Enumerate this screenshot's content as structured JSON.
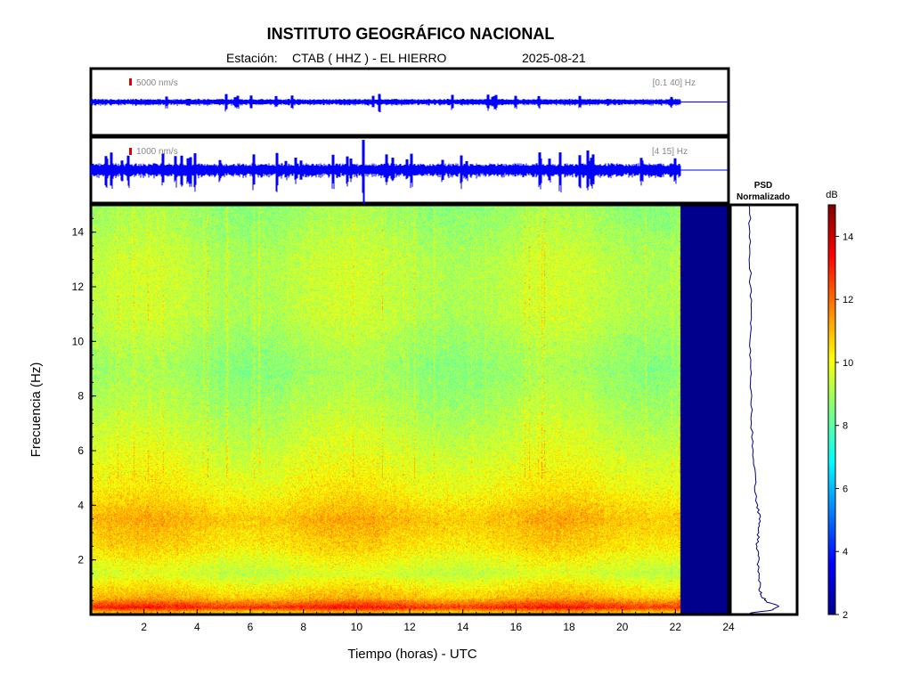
{
  "header": {
    "title": "INSTITUTO GEOGRÁFICO NACIONAL",
    "station_label": "Estación:",
    "station": "CTAB ( HHZ ) - EL HIERRO",
    "date": "2025-08-21"
  },
  "traces": [
    {
      "scale": "5000 nm/s",
      "band": "[0.1 40] Hz"
    },
    {
      "scale": "1000 nm/s",
      "band": "[4 15] Hz"
    }
  ],
  "colors": {
    "trace": "#0000ff",
    "scale_marker": "#e00000",
    "no_data": "#00008c",
    "psd_line": "#000080"
  },
  "chart_data": {
    "type": "heatmap",
    "xlabel": "Tiempo (horas) - UTC",
    "ylabel": "Frecuencia  (Hz)",
    "xlim": [
      0,
      24
    ],
    "ylim": [
      0,
      15
    ],
    "x_ticks": [
      2,
      4,
      6,
      8,
      10,
      12,
      14,
      16,
      18,
      20,
      22,
      24
    ],
    "y_ticks": [
      2,
      4,
      6,
      8,
      10,
      12,
      14
    ],
    "data_end_hour": 22.2,
    "profile_db": [
      {
        "f": 0.1,
        "db": 11
      },
      {
        "f": 0.25,
        "db": 13
      },
      {
        "f": 0.6,
        "db": 11
      },
      {
        "f": 1.5,
        "db": 9.5
      },
      {
        "f": 2.5,
        "db": 10.5
      },
      {
        "f": 3.5,
        "db": 11
      },
      {
        "f": 4.5,
        "db": 10.2
      },
      {
        "f": 6,
        "db": 9.6
      },
      {
        "f": 8,
        "db": 9.0
      },
      {
        "f": 9,
        "db": 8.8
      },
      {
        "f": 11,
        "db": 9.3
      },
      {
        "f": 13,
        "db": 9.3
      },
      {
        "f": 15,
        "db": 8.8
      }
    ],
    "psd": {
      "title": "PSD",
      "subtitle": "Normalizado",
      "points": [
        {
          "f": 0.05,
          "v": 0.05
        },
        {
          "f": 0.15,
          "v": 0.4
        },
        {
          "f": 0.3,
          "v": 0.55
        },
        {
          "f": 0.45,
          "v": 0.35
        },
        {
          "f": 0.7,
          "v": 0.25
        },
        {
          "f": 1.0,
          "v": 0.22
        },
        {
          "f": 1.5,
          "v": 0.2
        },
        {
          "f": 2.0,
          "v": 0.2
        },
        {
          "f": 2.5,
          "v": 0.18
        },
        {
          "f": 3.0,
          "v": 0.2
        },
        {
          "f": 3.5,
          "v": 0.22
        },
        {
          "f": 4.0,
          "v": 0.18
        },
        {
          "f": 5.0,
          "v": 0.14
        },
        {
          "f": 6.0,
          "v": 0.11
        },
        {
          "f": 7.0,
          "v": 0.09
        },
        {
          "f": 8.0,
          "v": 0.08
        },
        {
          "f": 9.0,
          "v": 0.07
        },
        {
          "f": 10.0,
          "v": 0.07
        },
        {
          "f": 11.0,
          "v": 0.07
        },
        {
          "f": 12.0,
          "v": 0.07
        },
        {
          "f": 13.0,
          "v": 0.06
        },
        {
          "f": 14.0,
          "v": 0.06
        },
        {
          "f": 15.0,
          "v": 0.05
        }
      ]
    },
    "colorbar": {
      "label": "dB",
      "range": [
        2,
        15
      ],
      "ticks": [
        2,
        4,
        6,
        8,
        10,
        12,
        14
      ]
    }
  }
}
